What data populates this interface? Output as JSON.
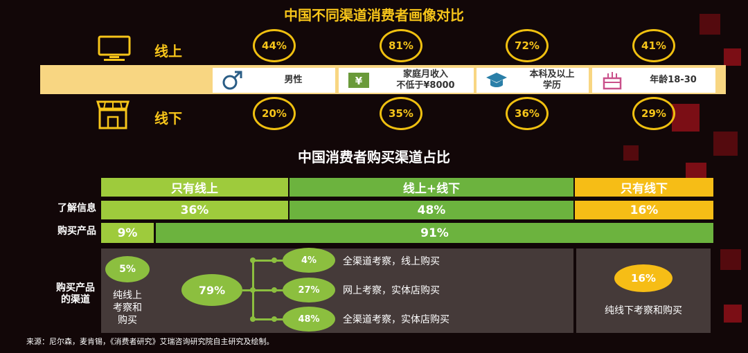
{
  "title_top": "中国不同渠道消费者画像对比",
  "title_bottom": "中国消费者购买渠道占比",
  "online_label": "线上",
  "offline_label": "线下",
  "attributes": [
    {
      "icon": "male-icon",
      "label": "男性",
      "online": "44%",
      "offline": "20%"
    },
    {
      "icon": "money-icon",
      "label": "家庭月收入 不低于¥8000",
      "online": "81%",
      "offline": "35%"
    },
    {
      "icon": "graduation-cap-icon",
      "label": "本科及以上 学历",
      "online": "72%",
      "offline": "36%"
    },
    {
      "icon": "birthday-cake-icon",
      "label": "年龄18-30",
      "online": "41%",
      "offline": "29%"
    }
  ],
  "channel_table": {
    "headers": [
      "只有线上",
      "线上+线下",
      "只有线下"
    ],
    "row_labels": [
      "了解信息",
      "购买产品",
      "购买产品 的渠道"
    ],
    "info_row": [
      "36%",
      "48%",
      "16%"
    ],
    "purchase_row": [
      "9%",
      "91%"
    ]
  },
  "purchase_channels": {
    "pure_online": {
      "value": "5%",
      "label": "纯线上 考察和 购买"
    },
    "mixed_total": "79%",
    "mixed_items": [
      {
        "value": "4%",
        "label": "全渠道考察，线上购买"
      },
      {
        "value": "27%",
        "label": "网上考察，实体店购买"
      },
      {
        "value": "48%",
        "label": "全渠道考察，实体店购买"
      }
    ],
    "pure_offline": {
      "value": "16%",
      "label": "纯线下考察和购买"
    }
  },
  "colors": {
    "gold": "#f7c51a",
    "light_green": "#9ecb3c",
    "green": "#6cb33e",
    "yellow": "#f6bd16",
    "panel": "#453a39",
    "band": "#f8d682"
  },
  "source": "来源：尼尔森，麦肯锡，《消费者研究》艾瑞咨询研究院自主研究及绘制。",
  "chart_data": [
    {
      "type": "table",
      "title": "中国不同渠道消费者画像对比",
      "categories": [
        "男性",
        "家庭月收入 不低于¥8000",
        "本科及以上 学历",
        "年龄18-30"
      ],
      "series": [
        {
          "name": "线上",
          "values": [
            44,
            81,
            72,
            41
          ]
        },
        {
          "name": "线下",
          "values": [
            20,
            35,
            36,
            29
          ]
        }
      ]
    },
    {
      "type": "bar",
      "title": "中国消费者购买渠道占比",
      "categories": [
        "了解信息",
        "购买产品"
      ],
      "series": [
        {
          "name": "只有线上",
          "values": [
            36,
            9
          ]
        },
        {
          "name": "线上+线下",
          "values": [
            48,
            91
          ]
        },
        {
          "name": "只有线下",
          "values": [
            16,
            null
          ]
        }
      ]
    }
  ]
}
